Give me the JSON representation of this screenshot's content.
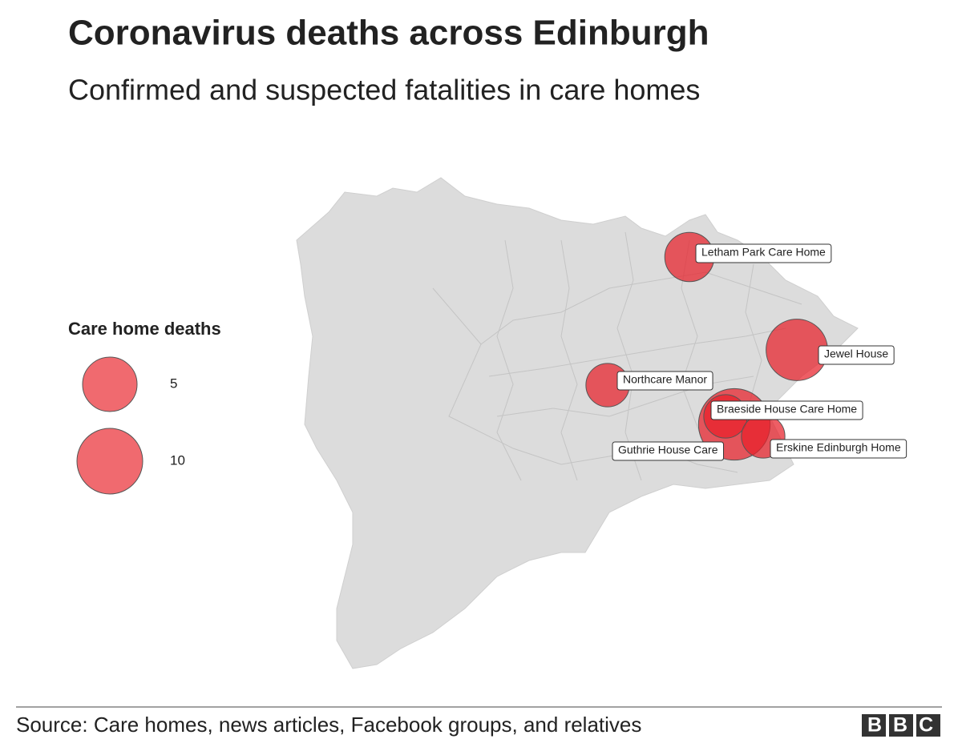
{
  "header": {
    "title": "Coronavirus deaths across Edinburgh",
    "subtitle": "Confirmed and suspected fatalities in care homes"
  },
  "legend": {
    "title": "Care home deaths",
    "sizes": [
      5,
      10
    ]
  },
  "care_homes": [
    {
      "name": "Letham Park Care Home",
      "deaths": 3
    },
    {
      "name": "Jewel House",
      "deaths": 8
    },
    {
      "name": "Northcare Manor",
      "deaths": 1
    },
    {
      "name": "Braeside House Care Home",
      "deaths": 13
    },
    {
      "name": "Guthrie House Care",
      "deaths": 1
    },
    {
      "name": "Erskine Edinburgh Home",
      "deaths": 1
    }
  ],
  "footer": {
    "source": "Source: Care homes, news articles, Facebook groups, and relatives",
    "logo": "BBC"
  }
}
